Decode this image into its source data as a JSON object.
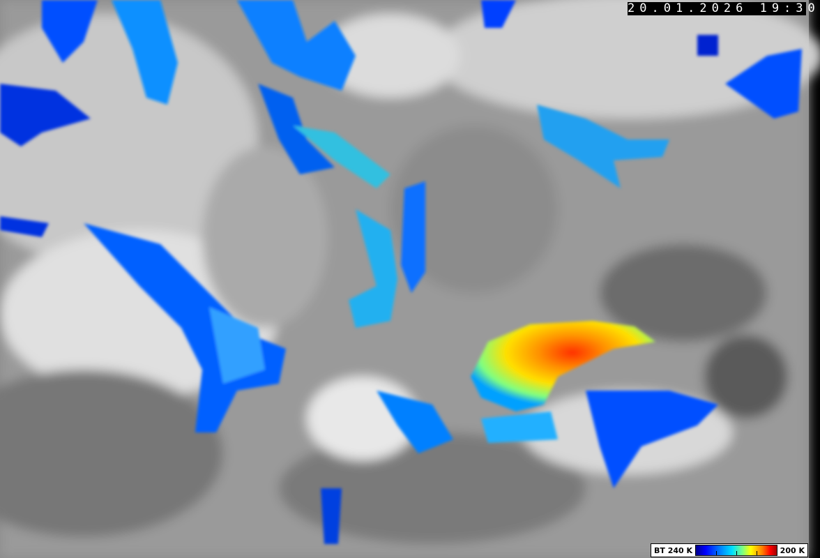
{
  "image": {
    "kind": "satellite infrared brightness temperature image",
    "timestamp": "20.01.2026 19:30"
  },
  "legend": {
    "label_left": "BT 240 K",
    "label_right": "200 K",
    "colors": [
      "#00008c",
      "#0000ff",
      "#0080ff",
      "#00e0ff",
      "#80ff80",
      "#ffff00",
      "#ff8000",
      "#ff0000",
      "#a00000"
    ]
  }
}
